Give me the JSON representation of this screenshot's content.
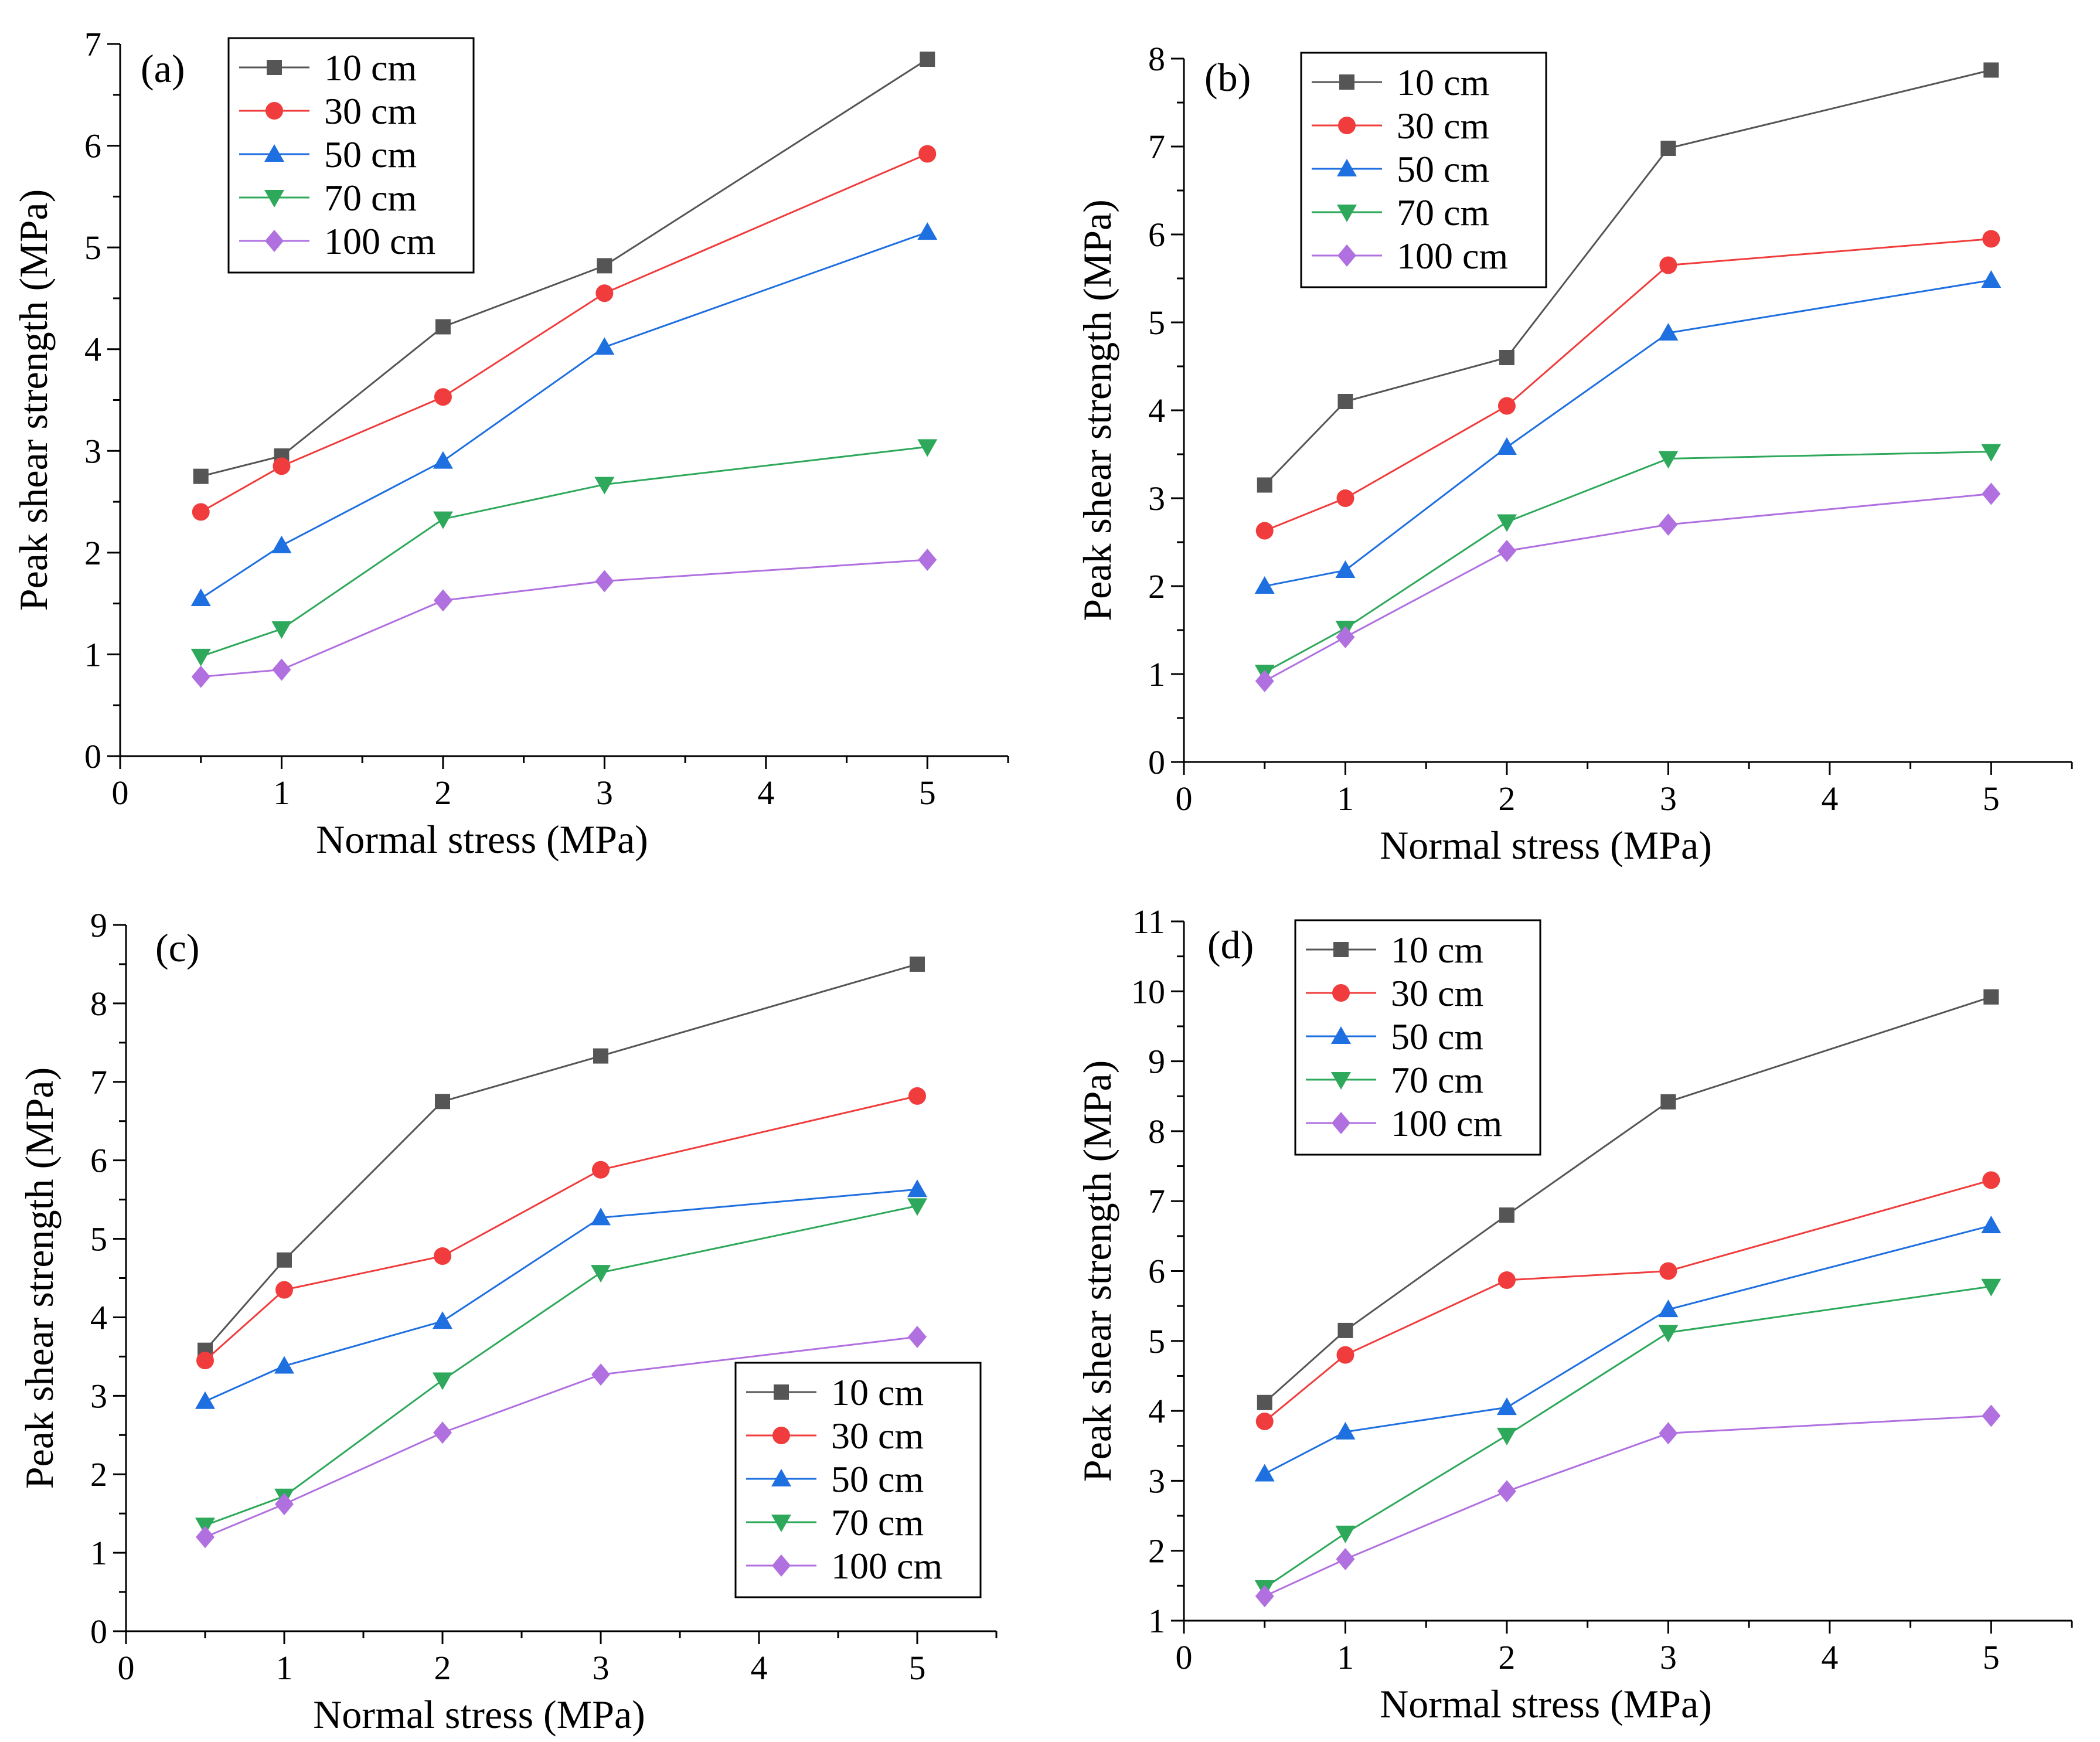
{
  "chart_data": [
    {
      "type": "line",
      "panel_label": "(a)",
      "xlabel": "Normal stress (MPa)",
      "ylabel": "Peak shear strength (MPa)",
      "xlim": [
        0,
        5.5
      ],
      "ylim": [
        0,
        7
      ],
      "xticks": [
        0,
        1,
        2,
        3,
        4,
        5
      ],
      "yticks": [
        0,
        1,
        2,
        3,
        4,
        5,
        6,
        7
      ],
      "legend_position": "top-left",
      "x": [
        0.5,
        1,
        2,
        3,
        5
      ],
      "series": [
        {
          "name": "10 cm",
          "color": "#555555",
          "marker": "square",
          "values": [
            2.75,
            2.95,
            4.22,
            4.82,
            6.85
          ]
        },
        {
          "name": "30 cm",
          "color": "#f03c3c",
          "marker": "circle",
          "values": [
            2.4,
            2.85,
            3.53,
            4.55,
            5.92
          ]
        },
        {
          "name": "50 cm",
          "color": "#1e6fe0",
          "marker": "triangle-up",
          "values": [
            1.55,
            2.07,
            2.9,
            4.02,
            5.15
          ]
        },
        {
          "name": "70 cm",
          "color": "#2ea85a",
          "marker": "triangle-down",
          "values": [
            0.98,
            1.25,
            2.33,
            2.67,
            3.04
          ]
        },
        {
          "name": "100 cm",
          "color": "#b070e0",
          "marker": "diamond",
          "values": [
            0.78,
            0.85,
            1.53,
            1.72,
            1.93
          ]
        }
      ]
    },
    {
      "type": "line",
      "panel_label": "(b)",
      "xlabel": "Normal stress (MPa)",
      "ylabel": "Peak shear strength (MPa)",
      "xlim": [
        0,
        5.5
      ],
      "ylim": [
        0,
        8
      ],
      "xticks": [
        0,
        1,
        2,
        3,
        4,
        5
      ],
      "yticks": [
        0,
        1,
        2,
        3,
        4,
        5,
        6,
        7,
        8
      ],
      "legend_position": "top-left",
      "x": [
        0.5,
        1,
        2,
        3,
        5
      ],
      "series": [
        {
          "name": "10 cm",
          "color": "#555555",
          "marker": "square",
          "values": [
            3.15,
            4.1,
            4.6,
            6.98,
            7.87
          ]
        },
        {
          "name": "30 cm",
          "color": "#f03c3c",
          "marker": "circle",
          "values": [
            2.63,
            3.0,
            4.05,
            5.65,
            5.95
          ]
        },
        {
          "name": "50 cm",
          "color": "#1e6fe0",
          "marker": "triangle-up",
          "values": [
            2.0,
            2.18,
            3.58,
            4.88,
            5.48
          ]
        },
        {
          "name": "70 cm",
          "color": "#2ea85a",
          "marker": "triangle-down",
          "values": [
            1.02,
            1.52,
            2.73,
            3.45,
            3.53
          ]
        },
        {
          "name": "100 cm",
          "color": "#b070e0",
          "marker": "diamond",
          "values": [
            0.92,
            1.42,
            2.4,
            2.7,
            3.05
          ]
        }
      ]
    },
    {
      "type": "line",
      "panel_label": "(c)",
      "xlabel": "Normal stress (MPa)",
      "ylabel": "Peak shear strength (MPa)",
      "xlim": [
        0,
        5.5
      ],
      "ylim": [
        0,
        9
      ],
      "xticks": [
        0,
        1,
        2,
        3,
        4,
        5
      ],
      "yticks": [
        0,
        1,
        2,
        3,
        4,
        5,
        6,
        7,
        8,
        9
      ],
      "legend_position": "bottom-right",
      "x": [
        0.5,
        1,
        2,
        3,
        5
      ],
      "series": [
        {
          "name": "10 cm",
          "color": "#555555",
          "marker": "square",
          "values": [
            3.58,
            4.73,
            6.75,
            7.33,
            8.5
          ]
        },
        {
          "name": "30 cm",
          "color": "#f03c3c",
          "marker": "circle",
          "values": [
            3.45,
            4.35,
            4.78,
            5.88,
            6.82
          ]
        },
        {
          "name": "50 cm",
          "color": "#1e6fe0",
          "marker": "triangle-up",
          "values": [
            2.93,
            3.38,
            3.95,
            5.27,
            5.63
          ]
        },
        {
          "name": "70 cm",
          "color": "#2ea85a",
          "marker": "triangle-down",
          "values": [
            1.35,
            1.72,
            3.2,
            4.57,
            5.42
          ]
        },
        {
          "name": "100 cm",
          "color": "#b070e0",
          "marker": "diamond",
          "values": [
            1.2,
            1.62,
            2.53,
            3.27,
            3.75
          ]
        }
      ]
    },
    {
      "type": "line",
      "panel_label": "(d)",
      "xlabel": "Normal stress (MPa)",
      "ylabel": "Peak shear strength (MPa)",
      "xlim": [
        0,
        5.5
      ],
      "ylim": [
        1,
        11
      ],
      "xticks": [
        0,
        1,
        2,
        3,
        4,
        5
      ],
      "yticks": [
        1,
        2,
        3,
        4,
        5,
        6,
        7,
        8,
        9,
        10,
        11
      ],
      "legend_position": "top-left",
      "x": [
        0.5,
        1,
        2,
        3,
        5
      ],
      "series": [
        {
          "name": "10 cm",
          "color": "#555555",
          "marker": "square",
          "values": [
            4.12,
            5.15,
            6.8,
            8.42,
            9.92
          ]
        },
        {
          "name": "30 cm",
          "color": "#f03c3c",
          "marker": "circle",
          "values": [
            3.85,
            4.8,
            5.87,
            6.0,
            7.3
          ]
        },
        {
          "name": "50 cm",
          "color": "#1e6fe0",
          "marker": "triangle-up",
          "values": [
            3.1,
            3.7,
            4.05,
            5.45,
            6.65
          ]
        },
        {
          "name": "70 cm",
          "color": "#2ea85a",
          "marker": "triangle-down",
          "values": [
            1.47,
            2.25,
            3.65,
            5.12,
            5.78
          ]
        },
        {
          "name": "100 cm",
          "color": "#b070e0",
          "marker": "diamond",
          "values": [
            1.35,
            1.88,
            2.85,
            3.68,
            3.93
          ]
        }
      ]
    }
  ]
}
